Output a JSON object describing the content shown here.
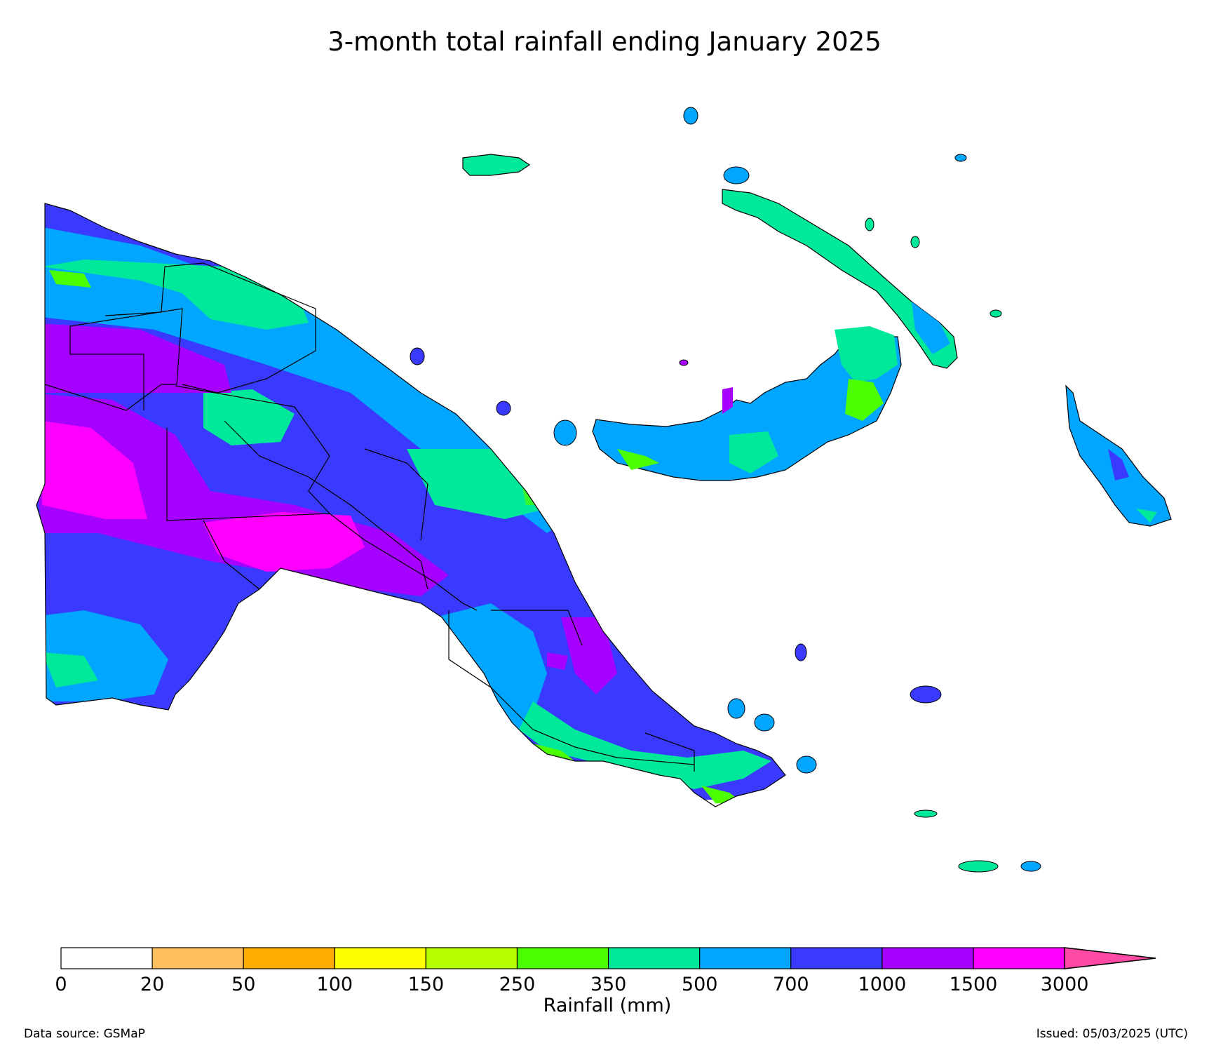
{
  "title": "3-month total rainfall ending January 2025",
  "colorbar": {
    "label": "Rainfall (mm)",
    "ticks": [
      "0",
      "20",
      "50",
      "100",
      "150",
      "250",
      "350",
      "500",
      "700",
      "1000",
      "1500",
      "3000"
    ],
    "colors": [
      "#ffffff",
      "#ffc060",
      "#ffab00",
      "#ffff00",
      "#b5ff00",
      "#4cff00",
      "#00e899",
      "#00a6ff",
      "#3a3aff",
      "#a600ff",
      "#ff00ff"
    ],
    "extend_color": "#ff4aa5"
  },
  "footer": {
    "source": "Data source: GSMaP",
    "issued": "Issued: 05/03/2025 (UTC)"
  }
}
